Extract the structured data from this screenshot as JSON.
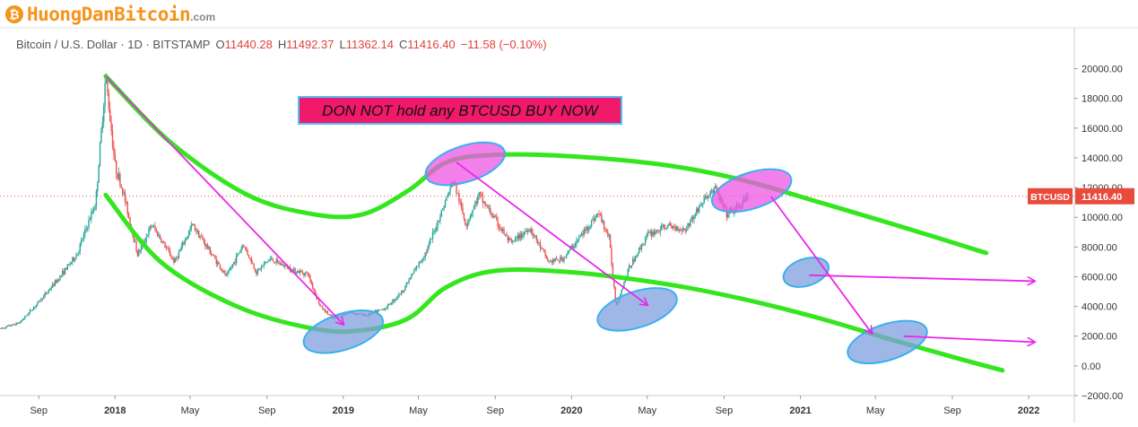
{
  "logo": {
    "coin_symbol": "₿",
    "name": "HuongDanBitcoin",
    "tld": ".com"
  },
  "header": {
    "symbol": "Bitcoin / U.S. Dollar · 1D · BITSTAMP",
    "open_label": "O",
    "open": "11440.28",
    "high_label": "H",
    "high": "11492.37",
    "low_label": "L",
    "low": "11362.14",
    "close_label": "C",
    "close": "11416.40",
    "change": "−11.58 (−0.10%)"
  },
  "annotation": {
    "text": "DON NOT hold any BTCUSD BUY NOW",
    "bg": "#f0196a",
    "border": "#4fc3f7"
  },
  "colors": {
    "green": "#35e61f",
    "magenta": "#ea27e8",
    "blue_ellipse": "#7f9fdf",
    "pink_ellipse": "#ee55e4",
    "up": "#26a69a",
    "down": "#ef5350",
    "badge": "#e84b3c"
  },
  "chart_data": {
    "type": "line",
    "title": "Bitcoin / U.S. Dollar · 1D · BITSTAMP",
    "ylim": [
      -2000,
      21000
    ],
    "xlim": [
      "2017-07-01",
      "2022-03-15"
    ],
    "yticks": [
      -2000,
      0,
      2000,
      4000,
      6000,
      8000,
      10000,
      12000,
      14000,
      16000,
      18000,
      20000
    ],
    "ytick_labels": [
      "−2000.00",
      "0.00",
      "2000.00",
      "4000.00",
      "6000.00",
      "8000.00",
      "10000.00",
      "12000.00",
      "14000.00",
      "16000.00",
      "18000.00",
      "20000.00"
    ],
    "xticks": [
      {
        "date": "2017-09-01",
        "label": "Sep"
      },
      {
        "date": "2018-01-01",
        "label": "2018"
      },
      {
        "date": "2018-05-01",
        "label": "May"
      },
      {
        "date": "2018-09-01",
        "label": "Sep"
      },
      {
        "date": "2019-01-01",
        "label": "2019"
      },
      {
        "date": "2019-05-01",
        "label": "May"
      },
      {
        "date": "2019-09-01",
        "label": "Sep"
      },
      {
        "date": "2020-01-01",
        "label": "2020"
      },
      {
        "date": "2020-05-01",
        "label": "May"
      },
      {
        "date": "2020-09-01",
        "label": "Sep"
      },
      {
        "date": "2021-01-01",
        "label": "2021"
      },
      {
        "date": "2021-05-01",
        "label": "May"
      },
      {
        "date": "2021-09-01",
        "label": "Sep"
      },
      {
        "date": "2022-01-01",
        "label": "2022"
      }
    ],
    "grid": false,
    "last_price": 11416.4,
    "last_price_label": "11416.40",
    "last_price_tag": "BTCUSD",
    "series": [
      {
        "name": "BTCUSD",
        "x": [
          "2017-07-01",
          "2017-08-01",
          "2017-09-01",
          "2017-10-01",
          "2017-11-01",
          "2017-12-01",
          "2017-12-17",
          "2018-01-01",
          "2018-01-15",
          "2018-02-06",
          "2018-03-01",
          "2018-04-06",
          "2018-05-05",
          "2018-06-28",
          "2018-07-25",
          "2018-08-15",
          "2018-09-05",
          "2018-10-15",
          "2018-11-05",
          "2018-11-25",
          "2018-12-15",
          "2019-01-10",
          "2019-02-07",
          "2019-03-10",
          "2019-04-05",
          "2019-05-15",
          "2019-06-26",
          "2019-07-16",
          "2019-08-06",
          "2019-09-26",
          "2019-10-26",
          "2019-11-25",
          "2019-12-18",
          "2020-01-15",
          "2020-02-13",
          "2020-03-01",
          "2020-03-12",
          "2020-04-01",
          "2020-05-01",
          "2020-06-01",
          "2020-07-01",
          "2020-07-28",
          "2020-08-17",
          "2020-09-05",
          "2020-09-25",
          "2020-10-09"
        ],
        "y": [
          2500,
          2900,
          4300,
          5800,
          7500,
          11000,
          19500,
          13500,
          11500,
          7500,
          9500,
          7000,
          9500,
          6000,
          8200,
          6300,
          7200,
          6400,
          6200,
          4000,
          3200,
          3600,
          3400,
          3900,
          5000,
          7800,
          12500,
          9500,
          11500,
          8200,
          9300,
          7000,
          7200,
          8700,
          10300,
          8600,
          4000,
          6500,
          8800,
          9400,
          9200,
          11000,
          12000,
          10200,
          10700,
          11416
        ]
      }
    ],
    "overlays": {
      "green_curves": [
        {
          "x": [
            "2017-12-17",
            "2018-04-01",
            "2018-08-01",
            "2018-11-15",
            "2019-02-01",
            "2019-04-15",
            "2019-06-15",
            "2019-09-01",
            "2020-01-01",
            "2020-06-01",
            "2020-10-01",
            "2021-02-01",
            "2021-06-01",
            "2021-10-25"
          ],
          "y": [
            19500,
            15000,
            11500,
            10200,
            10200,
            11800,
            13700,
            14200,
            14100,
            13500,
            12500,
            11000,
            9500,
            7600
          ]
        },
        {
          "x": [
            "2017-12-17",
            "2018-03-15",
            "2018-07-15",
            "2018-11-15",
            "2019-02-01",
            "2019-04-15",
            "2019-06-15",
            "2019-09-01",
            "2020-01-01",
            "2020-06-01",
            "2020-10-01",
            "2021-02-01",
            "2021-06-01",
            "2021-09-10",
            "2021-11-20"
          ],
          "y": [
            11500,
            7000,
            4000,
            2500,
            2400,
            3200,
            5300,
            6400,
            6300,
            5500,
            4500,
            3200,
            1700,
            500,
            -300
          ]
        }
      ],
      "arrows": [
        {
          "from": {
            "x": "2017-12-17",
            "y": 19500
          },
          "to": {
            "x": "2019-01-01",
            "y": 2800
          }
        },
        {
          "from": {
            "x": "2019-07-01",
            "y": 13700
          },
          "to": {
            "x": "2020-05-01",
            "y": 4100
          }
        },
        {
          "from": {
            "x": "2020-11-15",
            "y": 11400
          },
          "to": {
            "x": "2021-04-25",
            "y": 2200
          }
        },
        {
          "from": {
            "x": "2021-01-15",
            "y": 6100
          },
          "to": {
            "x": "2022-01-10",
            "y": 5700
          }
        },
        {
          "from": {
            "x": "2021-06-15",
            "y": 2000
          },
          "to": {
            "x": "2022-01-10",
            "y": 1600
          }
        }
      ],
      "ellipses": [
        {
          "cx": "2019-01-01",
          "cy": 2300,
          "kind": "blue"
        },
        {
          "cx": "2019-07-15",
          "cy": 13600,
          "kind": "pink"
        },
        {
          "cx": "2020-04-15",
          "cy": 3800,
          "kind": "blue"
        },
        {
          "cx": "2020-10-15",
          "cy": 11800,
          "kind": "pink"
        },
        {
          "cx": "2021-01-10",
          "cy": 6300,
          "kind": "blue"
        },
        {
          "cx": "2021-05-20",
          "cy": 1600,
          "kind": "blue"
        }
      ]
    }
  }
}
